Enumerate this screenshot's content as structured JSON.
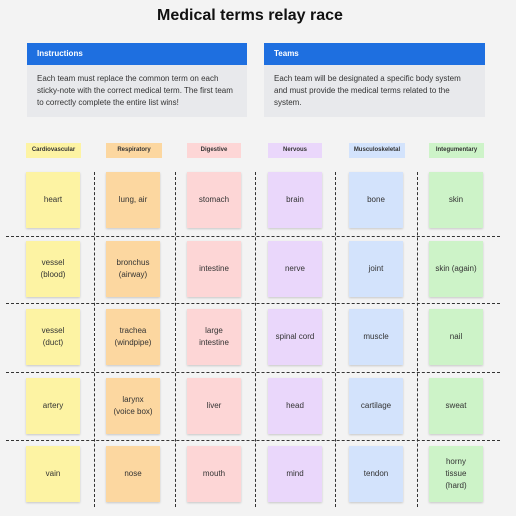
{
  "title": "Medical terms relay race",
  "instructions": {
    "heading": "Instructions",
    "text": "Each team must replace the common term on each sticky-note with the correct medical term.  The first team to correctly complete the entire list wins!"
  },
  "teams": {
    "heading": "Teams",
    "text": "Each team will be designated a specific body system and must provide the medical terms related to the system."
  },
  "colors": {
    "accent": "#1e6fe0",
    "yellow": "#fdf3a3",
    "orange": "#fcd7a0",
    "pink": "#fdd6d6",
    "purple": "#ead7fb",
    "blue": "#d3e3fc",
    "green": "#cdf3c8"
  },
  "columns": [
    {
      "label": "Cardiovascular",
      "color": "yellow",
      "notes": [
        "heart",
        "vessel\n(blood)",
        "vessel\n(duct)",
        "artery",
        "vain"
      ]
    },
    {
      "label": "Respiratory",
      "color": "orange",
      "notes": [
        "lung, air",
        "bronchus\n(airway)",
        "trachea\n(windpipe)",
        "larynx\n(voice box)",
        "nose"
      ]
    },
    {
      "label": "Digestive",
      "color": "pink",
      "notes": [
        "stomach",
        "intestine",
        "large\nintestine",
        "liver",
        "mouth"
      ]
    },
    {
      "label": "Nervous",
      "color": "purple",
      "notes": [
        "brain",
        "nerve",
        "spinal cord",
        "head",
        "mind"
      ]
    },
    {
      "label": "Musculoskeletal",
      "color": "blue",
      "notes": [
        "bone",
        "joint",
        "muscle",
        "cartilage",
        "tendon"
      ]
    },
    {
      "label": "Integumentary",
      "color": "green",
      "notes": [
        "skin",
        "skin (again)",
        "nail",
        "sweat",
        "horny\ntissue\n(hard)"
      ]
    }
  ]
}
